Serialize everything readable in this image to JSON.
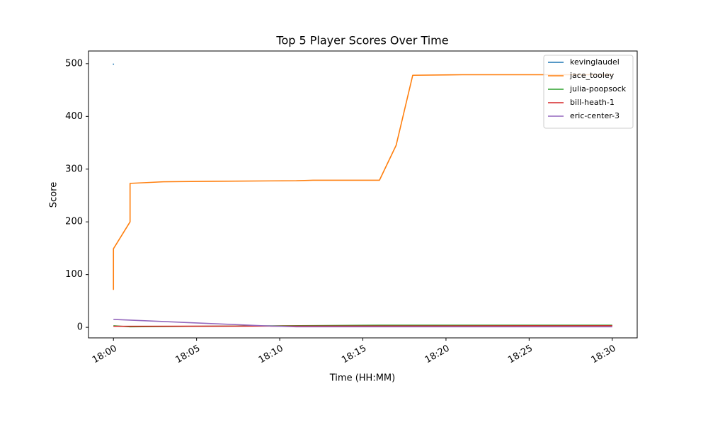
{
  "chart_data": {
    "type": "line",
    "title": "Top 5 Player Scores Over Time",
    "x_label": "Time (HH:MM)",
    "y_label": "Score",
    "xlim": [
      "17:58:30",
      "18:31:30"
    ],
    "ylim": [
      -20,
      524
    ],
    "xticks": [
      "18:00",
      "18:05",
      "18:10",
      "18:15",
      "18:20",
      "18:25",
      "18:30"
    ],
    "yticks": [
      0,
      100,
      200,
      300,
      400,
      500
    ],
    "legend": "upper right",
    "series": [
      {
        "name": "kevinglaudel",
        "color": "#1f77b4",
        "x": [
          "18:00"
        ],
        "values": [
          499
        ]
      },
      {
        "name": "jace_tooley",
        "color": "#ff7f0e",
        "x": [
          "18:00",
          "18:00",
          "18:01",
          "18:01",
          "18:03",
          "18:06",
          "18:11",
          "18:12",
          "18:16",
          "18:17",
          "18:18",
          "18:21",
          "18:30"
        ],
        "values": [
          71,
          149,
          200,
          273,
          276,
          277,
          278,
          279,
          279,
          345,
          478,
          479,
          479
        ]
      },
      {
        "name": "julia-poopsock",
        "color": "#2ca02c",
        "x": [
          "18:00",
          "18:01",
          "18:05",
          "18:16",
          "18:30"
        ],
        "values": [
          3,
          1,
          2,
          4,
          4
        ]
      },
      {
        "name": "bill-heath-1",
        "color": "#d62728",
        "x": [
          "18:00",
          "18:30"
        ],
        "values": [
          2,
          3
        ]
      },
      {
        "name": "eric-center-3",
        "color": "#9467bd",
        "x": [
          "18:00",
          "18:09",
          "18:11",
          "18:30"
        ],
        "values": [
          15,
          3,
          1,
          1
        ]
      }
    ]
  }
}
